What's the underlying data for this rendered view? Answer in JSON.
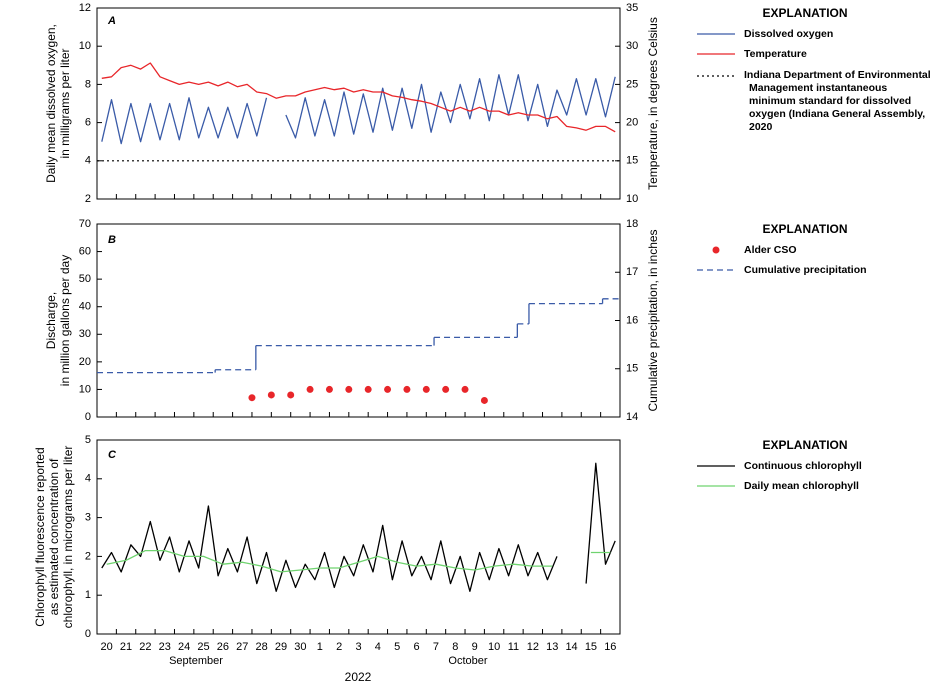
{
  "x_axis": {
    "xlim": [
      0,
      27
    ],
    "xticks": [
      0,
      1,
      2,
      3,
      4,
      5,
      6,
      7,
      8,
      9,
      10,
      11,
      12,
      13,
      14,
      15,
      16,
      17,
      18,
      19,
      20,
      21,
      22,
      23,
      24,
      25,
      26,
      27
    ],
    "categories": [
      "20",
      "21",
      "22",
      "23",
      "24",
      "25",
      "26",
      "27",
      "28",
      "29",
      "30",
      "1",
      "2",
      "3",
      "4",
      "5",
      "6",
      "7",
      "8",
      "9",
      "10",
      "11",
      "12",
      "13",
      "14",
      "15",
      "16"
    ],
    "months": [
      "September",
      "October"
    ],
    "year": "2022"
  },
  "chart_data": [
    {
      "type": "line",
      "label": "A",
      "ylabel": [
        "Daily mean dissolved oxygen,",
        "in milligrams per liter"
      ],
      "y2label": "Temperature, in degrees Celsius",
      "ylim": [
        2,
        12
      ],
      "yticks": [
        2,
        4,
        6,
        8,
        10,
        12
      ],
      "y2lim": [
        10,
        35
      ],
      "y2ticks": [
        10,
        15,
        20,
        25,
        30,
        35
      ],
      "legend_title": "EXPLANATION",
      "x": [
        0.25,
        0.75,
        1.25,
        1.75,
        2.25,
        2.75,
        3.25,
        3.75,
        4.25,
        4.75,
        5.25,
        5.75,
        6.25,
        6.75,
        7.25,
        7.75,
        8.25,
        8.75,
        9.25,
        9.75,
        10.25,
        10.75,
        11.25,
        11.75,
        12.25,
        12.75,
        13.25,
        13.75,
        14.25,
        14.75,
        15.25,
        15.75,
        16.25,
        16.75,
        17.25,
        17.75,
        18.25,
        18.75,
        19.25,
        19.75,
        20.25,
        20.75,
        21.25,
        21.75,
        22.25,
        22.75,
        23.25,
        23.75,
        24.25,
        24.75,
        25.25,
        25.75,
        26.25,
        26.75
      ],
      "series": [
        {
          "name": "Dissolved oxygen",
          "type": "line",
          "color": "#3a5ba8",
          "values": [
            5.0,
            7.2,
            4.9,
            7.0,
            5.0,
            7.0,
            5.1,
            7.0,
            5.1,
            7.3,
            5.2,
            6.8,
            5.2,
            6.8,
            5.2,
            7.0,
            5.3,
            7.3,
            null,
            6.4,
            5.2,
            7.3,
            5.3,
            7.2,
            5.3,
            7.6,
            5.4,
            7.5,
            5.5,
            7.8,
            5.6,
            7.8,
            5.7,
            8.0,
            5.5,
            7.6,
            6.0,
            8.0,
            6.2,
            8.3,
            6.1,
            8.5,
            6.4,
            8.5,
            6.1,
            8.0,
            5.8,
            7.7,
            6.4,
            8.3,
            6.4,
            8.3,
            6.3,
            8.4
          ]
        },
        {
          "name": "Temperature",
          "type": "line",
          "color": "#e8262a",
          "axis": "y2",
          "values": [
            25.8,
            26.0,
            27.2,
            27.5,
            27.0,
            27.8,
            26.0,
            25.5,
            25.0,
            25.3,
            25.0,
            25.3,
            24.8,
            25.3,
            24.7,
            25.0,
            24.0,
            23.8,
            23.2,
            23.5,
            23.5,
            24.0,
            24.3,
            24.6,
            24.3,
            24.5,
            24.0,
            24.3,
            24.0,
            24.0,
            23.5,
            23.3,
            23.0,
            22.8,
            22.5,
            22.0,
            21.5,
            22.0,
            21.5,
            22.0,
            21.5,
            21.5,
            21.0,
            21.3,
            21.0,
            21.0,
            20.5,
            20.8,
            19.5,
            19.3,
            19.0,
            19.5,
            19.5,
            18.8
          ]
        }
      ],
      "reference_lines": [
        {
          "name": "Indiana Department of Environmental Management instantaneous minimum standard for dissolved oxygen (Indiana General Assembly, 2020",
          "value": 4,
          "color": "#000000",
          "dash": "2,3"
        }
      ]
    },
    {
      "type": "line",
      "label": "B",
      "ylabel": [
        "Discharge,",
        "in million gallons per day"
      ],
      "y2label": "Cumulative precipitation, in inches",
      "ylim": [
        0,
        70
      ],
      "yticks": [
        0,
        10,
        20,
        30,
        40,
        50,
        60,
        70
      ],
      "y2lim": [
        14,
        18
      ],
      "y2ticks": [
        14,
        15,
        16,
        17,
        18
      ],
      "legend_title": "EXPLANATION",
      "series": [
        {
          "name": "Alder CSO",
          "type": "scatter",
          "color": "#e8262a",
          "x": [
            8,
            9,
            10,
            11,
            12,
            13,
            14,
            15,
            16,
            17,
            18,
            19,
            20
          ],
          "values": [
            7,
            8,
            8,
            10,
            10,
            10,
            10,
            10,
            10,
            10,
            10,
            10,
            6
          ]
        },
        {
          "name": "Cumulative precipitation",
          "type": "step",
          "color": "#3a5ba8",
          "axis": "y2",
          "dash": "6,4",
          "x": [
            0,
            6.1,
            8.2,
            17.4,
            21.7,
            22.3,
            26.1
          ],
          "values": [
            14.92,
            14.98,
            15.48,
            15.65,
            15.93,
            16.35,
            16.45
          ]
        }
      ]
    },
    {
      "type": "line",
      "label": "C",
      "ylabel": [
        "Chlorophyll fluorescence reported",
        "as estimated concentration of",
        "chlorophyll, in micrograms per liter"
      ],
      "ylim": [
        0,
        5
      ],
      "yticks": [
        0,
        1,
        2,
        3,
        4,
        5
      ],
      "legend_title": "EXPLANATION",
      "series": [
        {
          "name": "Continuous chlorophyll",
          "type": "line",
          "color": "#000000",
          "x": [
            0.25,
            0.75,
            1.25,
            1.75,
            2.25,
            2.75,
            3.25,
            3.75,
            4.25,
            4.75,
            5.25,
            5.75,
            6.25,
            6.75,
            7.25,
            7.75,
            8.25,
            8.75,
            9.25,
            9.75,
            10.25,
            10.75,
            11.25,
            11.75,
            12.25,
            12.75,
            13.25,
            13.75,
            14.25,
            14.75,
            15.25,
            15.75,
            16.25,
            16.75,
            17.25,
            17.75,
            18.25,
            18.75,
            19.25,
            19.75,
            20.25,
            20.75,
            21.25,
            21.75,
            22.25,
            22.75,
            23.25,
            23.75,
            24.25,
            24.75,
            25.25,
            25.75,
            26.25,
            26.75
          ],
          "values": [
            1.7,
            2.1,
            1.6,
            2.3,
            2.0,
            2.9,
            1.9,
            2.5,
            1.6,
            2.4,
            1.7,
            3.3,
            1.5,
            2.2,
            1.6,
            2.5,
            1.3,
            2.1,
            1.1,
            1.9,
            1.2,
            1.8,
            1.4,
            2.1,
            1.2,
            2.0,
            1.5,
            2.3,
            1.6,
            2.8,
            1.4,
            2.4,
            1.5,
            2.0,
            1.4,
            2.4,
            1.3,
            2.0,
            1.1,
            2.1,
            1.4,
            2.2,
            1.5,
            2.3,
            1.5,
            2.1,
            1.4,
            2.0,
            null,
            null,
            1.3,
            4.4,
            1.8,
            2.4
          ]
        },
        {
          "name": "Daily mean chlorophyll",
          "type": "line",
          "color": "#6fd36f",
          "x": [
            0.5,
            1.5,
            2.5,
            3.5,
            4.5,
            5.5,
            6.5,
            7.5,
            8.5,
            9.5,
            10.5,
            11.5,
            12.5,
            13.5,
            14.5,
            15.5,
            16.5,
            17.5,
            18.5,
            19.5,
            20.5,
            21.5,
            22.5,
            23.5,
            24.5,
            25.5,
            26.5
          ],
          "values": [
            1.8,
            1.9,
            2.15,
            2.15,
            2.0,
            2.0,
            1.8,
            1.85,
            1.75,
            1.6,
            1.65,
            1.7,
            1.7,
            1.85,
            2.0,
            1.85,
            1.75,
            1.8,
            1.7,
            1.65,
            1.75,
            1.8,
            1.75,
            1.75,
            null,
            2.1,
            2.1
          ]
        }
      ]
    }
  ]
}
